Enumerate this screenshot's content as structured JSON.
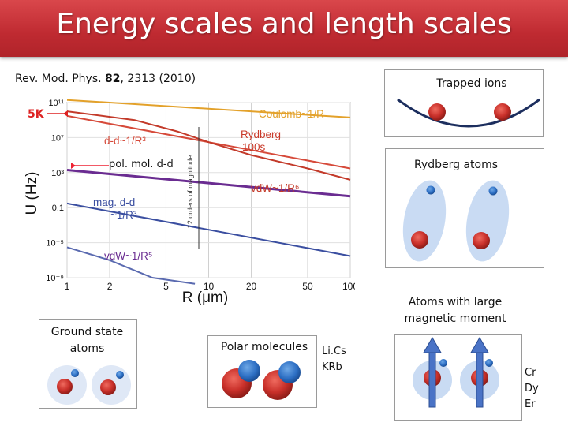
{
  "title": "Energy scales and length scales",
  "reference": {
    "prefix": "Rev. Mod. Phys. ",
    "volume": "82",
    "suffix": ", 2313 (2010)"
  },
  "labels": {
    "five_k": "5K",
    "pol_mol": "pol. mol. d-d",
    "trapped_ions": "Trapped ions",
    "rydberg_atoms": "Rydberg atoms",
    "magnetic_line1": "Atoms with large",
    "magnetic_line2": "magnetic moment",
    "ground_line1": "Ground state",
    "ground_line2": "atoms",
    "polar_molecules": "Polar molecules",
    "species_polar": [
      "Li.Cs",
      "KRb"
    ],
    "species_magnetic": [
      "Cr",
      "Dy",
      "Er"
    ]
  },
  "chart_data": {
    "type": "line",
    "xlabel": "R (μm)",
    "ylabel": "U (Hz)",
    "xscale": "log",
    "yscale": "log",
    "xlim": [
      1,
      100
    ],
    "ylim": [
      1e-09,
      100000000000.0
    ],
    "xticks": [
      1,
      2,
      5,
      10,
      20,
      50,
      100
    ],
    "xtick_labels": [
      "1",
      "2",
      "5",
      "10",
      "20",
      "50",
      "100"
    ],
    "yticks": [
      100000000000.0,
      10000000.0,
      1000.0,
      0.1,
      1e-05,
      1e-09
    ],
    "ytick_labels": [
      "10¹¹",
      "10⁷",
      "10³",
      "0.1",
      "10⁻⁵",
      "10⁻⁹"
    ],
    "series": [
      {
        "name": "Coulomb~1/R",
        "color": "#e3a12a",
        "x": [
          1,
          100
        ],
        "y": [
          200000000000.0,
          2000000000.0
        ]
      },
      {
        "name": "Rydberg 100s d-d~1/R³",
        "color": "#d64a3a",
        "x": [
          1,
          100
        ],
        "y": [
          3000000000.0,
          3000.0
        ]
      },
      {
        "name": "Rydberg 100s vdW~1/R⁶",
        "color": "#c33a2a",
        "x": [
          1,
          3,
          6,
          10,
          20,
          50,
          100
        ],
        "y": [
          10000000000.0,
          1000000000.0,
          50000000.0,
          3000000.0,
          100000.0,
          3000.0,
          150
        ]
      },
      {
        "name": "pol. mol. d-d",
        "color": "#6a2c91",
        "x": [
          1,
          100
        ],
        "y": [
          2000.0,
          2
        ]
      },
      {
        "name": "mag. d-d ~1/R³",
        "color": "#3a4ea0",
        "x": [
          1,
          100
        ],
        "y": [
          0.3,
          3e-07
        ]
      },
      {
        "name": "vdW~1/R⁵",
        "color": "#5a6ab0",
        "x": [
          1,
          2,
          4,
          8
        ],
        "y": [
          3e-06,
          1e-07,
          1e-09,
          2e-10
        ]
      }
    ],
    "annotations": [
      "Coulomb~1/R",
      "Rydberg",
      "100s",
      "d-d~1/R³",
      "vdW~1/R⁶",
      "mag. d-d",
      "~1/R³",
      "vdW~1/R⁵",
      "12 orders of magnitude"
    ]
  }
}
